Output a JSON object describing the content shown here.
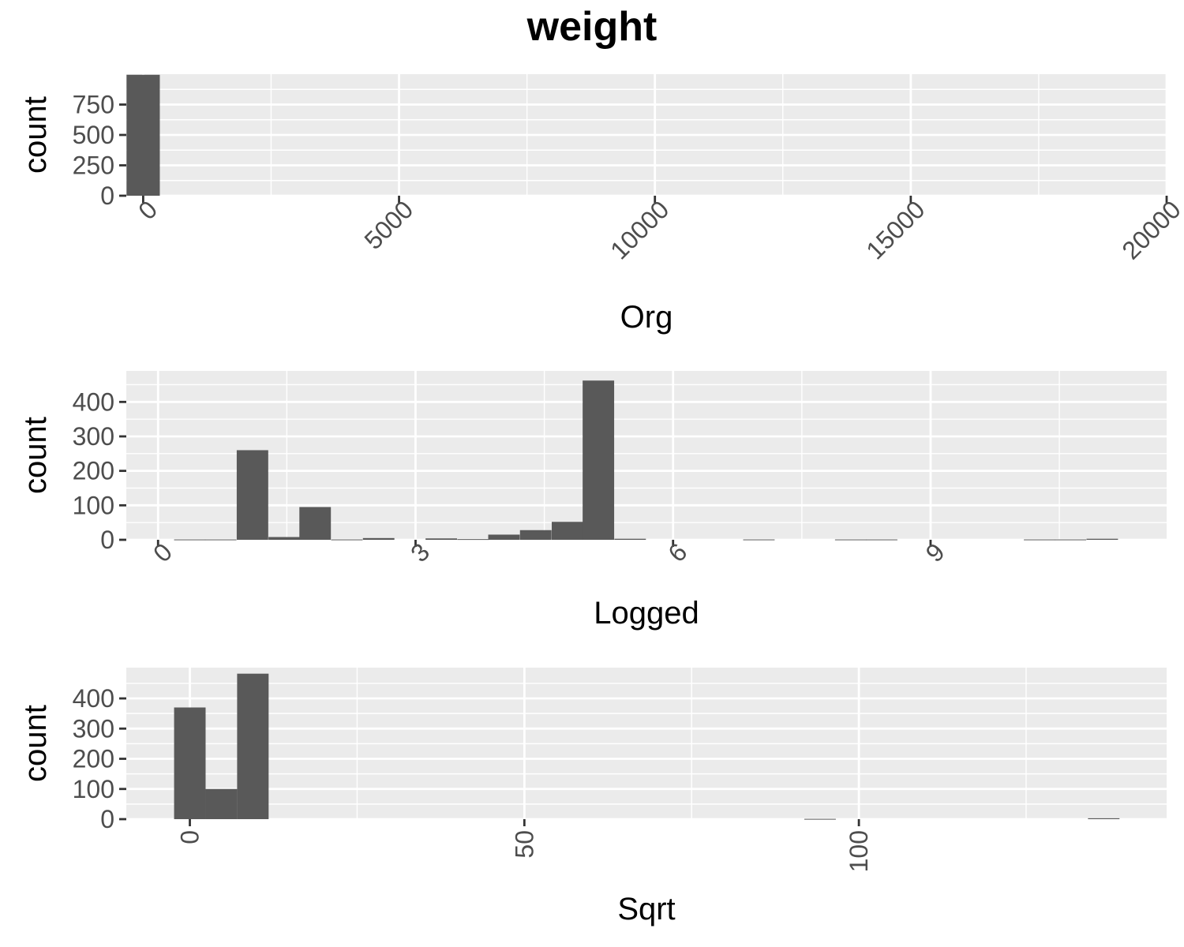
{
  "title": "weight",
  "chart_data": [
    {
      "type": "bar",
      "xlabel": "Org",
      "ylabel": "count",
      "xlim": [
        -330,
        20000
      ],
      "ylim": [
        0,
        1000
      ],
      "x_ticks": [
        0,
        5000,
        10000,
        15000,
        20000
      ],
      "x_tick_labels": [
        "0",
        "5000",
        "10000",
        "15000",
        "20000"
      ],
      "y_ticks": [
        0,
        250,
        500,
        750
      ],
      "y_tick_labels": [
        "0",
        "250",
        "500",
        "750"
      ],
      "x_tick_rotation": -45,
      "grid": true,
      "bin_width": 650,
      "bins": [
        {
          "x": 0,
          "count": 995
        }
      ]
    },
    {
      "type": "bar",
      "xlabel": "Logged",
      "ylabel": "count",
      "xlim": [
        -0.37,
        11.75
      ],
      "ylim": [
        0,
        490
      ],
      "x_ticks": [
        0,
        3,
        6,
        9
      ],
      "x_tick_labels": [
        "0",
        "3",
        "6",
        "9"
      ],
      "y_ticks": [
        0,
        100,
        200,
        300,
        400
      ],
      "y_tick_labels": [
        "0",
        "100",
        "200",
        "300",
        "400"
      ],
      "x_tick_rotation": -45,
      "grid": true,
      "bin_width": 0.367,
      "bins": [
        {
          "x": 0.37,
          "count": 1
        },
        {
          "x": 0.73,
          "count": 1
        },
        {
          "x": 1.1,
          "count": 260
        },
        {
          "x": 1.47,
          "count": 8
        },
        {
          "x": 1.83,
          "count": 95
        },
        {
          "x": 2.2,
          "count": 1
        },
        {
          "x": 2.57,
          "count": 5
        },
        {
          "x": 3.3,
          "count": 4
        },
        {
          "x": 3.67,
          "count": 2
        },
        {
          "x": 4.03,
          "count": 15
        },
        {
          "x": 4.4,
          "count": 28
        },
        {
          "x": 4.77,
          "count": 52
        },
        {
          "x": 5.13,
          "count": 462
        },
        {
          "x": 5.5,
          "count": 3
        },
        {
          "x": 7.0,
          "count": 1
        },
        {
          "x": 8.07,
          "count": 1
        },
        {
          "x": 8.43,
          "count": 1
        },
        {
          "x": 10.27,
          "count": 1
        },
        {
          "x": 10.63,
          "count": 1
        },
        {
          "x": 11.0,
          "count": 3
        }
      ]
    },
    {
      "type": "bar",
      "xlabel": "Sqrt",
      "ylabel": "count",
      "xlim": [
        -9.5,
        146
      ],
      "ylim": [
        0,
        502
      ],
      "x_ticks": [
        0,
        50,
        100
      ],
      "x_tick_labels": [
        "0",
        "50",
        "100"
      ],
      "y_ticks": [
        0,
        100,
        200,
        300,
        400
      ],
      "y_tick_labels": [
        "0",
        "100",
        "200",
        "300",
        "400"
      ],
      "x_tick_rotation": -90,
      "grid": true,
      "bin_width": 4.71,
      "bins": [
        {
          "x": 0,
          "count": 370
        },
        {
          "x": 4.71,
          "count": 100
        },
        {
          "x": 9.42,
          "count": 482
        },
        {
          "x": 94.2,
          "count": 1
        },
        {
          "x": 136.6,
          "count": 3
        }
      ]
    }
  ]
}
